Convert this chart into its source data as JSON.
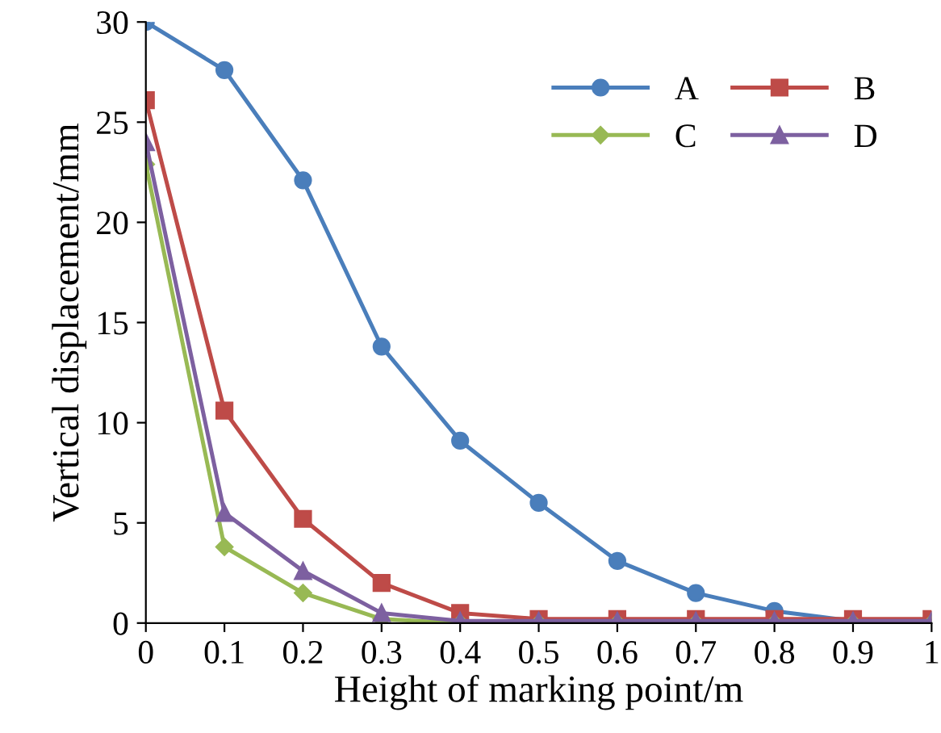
{
  "chart_data": {
    "type": "line",
    "xlabel": "Height of marking point/m",
    "ylabel": "Vertical displacement/mm",
    "x": [
      0,
      0.1,
      0.2,
      0.3,
      0.4,
      0.5,
      0.6,
      0.7,
      0.8,
      0.9,
      1
    ],
    "xlim": [
      0,
      1
    ],
    "xticks": [
      0,
      0.1,
      0.2,
      0.3,
      0.4,
      0.5,
      0.6,
      0.7,
      0.8,
      0.9,
      1
    ],
    "ylim": [
      0,
      30
    ],
    "yticks": [
      0,
      5,
      10,
      15,
      20,
      25,
      30
    ],
    "grid": false,
    "legend": "top right",
    "line_style": "solid",
    "series": [
      {
        "name": "A",
        "color": "#4a7ebb",
        "marker": "circle",
        "values": [
          30,
          27.6,
          22.1,
          13.8,
          9.1,
          6.0,
          3.1,
          1.5,
          0.6,
          0.1,
          0.1
        ]
      },
      {
        "name": "B",
        "color": "#be4b48",
        "marker": "square",
        "values": [
          26.1,
          10.6,
          5.2,
          2.0,
          0.5,
          0.2,
          0.2,
          0.2,
          0.2,
          0.2,
          0.2
        ]
      },
      {
        "name": "C",
        "color": "#98b954",
        "marker": "diamond",
        "values": [
          22.9,
          3.8,
          1.5,
          0.2,
          0,
          0,
          0,
          0,
          0,
          0,
          0
        ]
      },
      {
        "name": "D",
        "color": "#7d60a0",
        "marker": "triangle",
        "values": [
          24.0,
          5.5,
          2.6,
          0.5,
          0.1,
          0.1,
          0.1,
          0.1,
          0.1,
          0.1,
          0.1
        ]
      }
    ]
  }
}
